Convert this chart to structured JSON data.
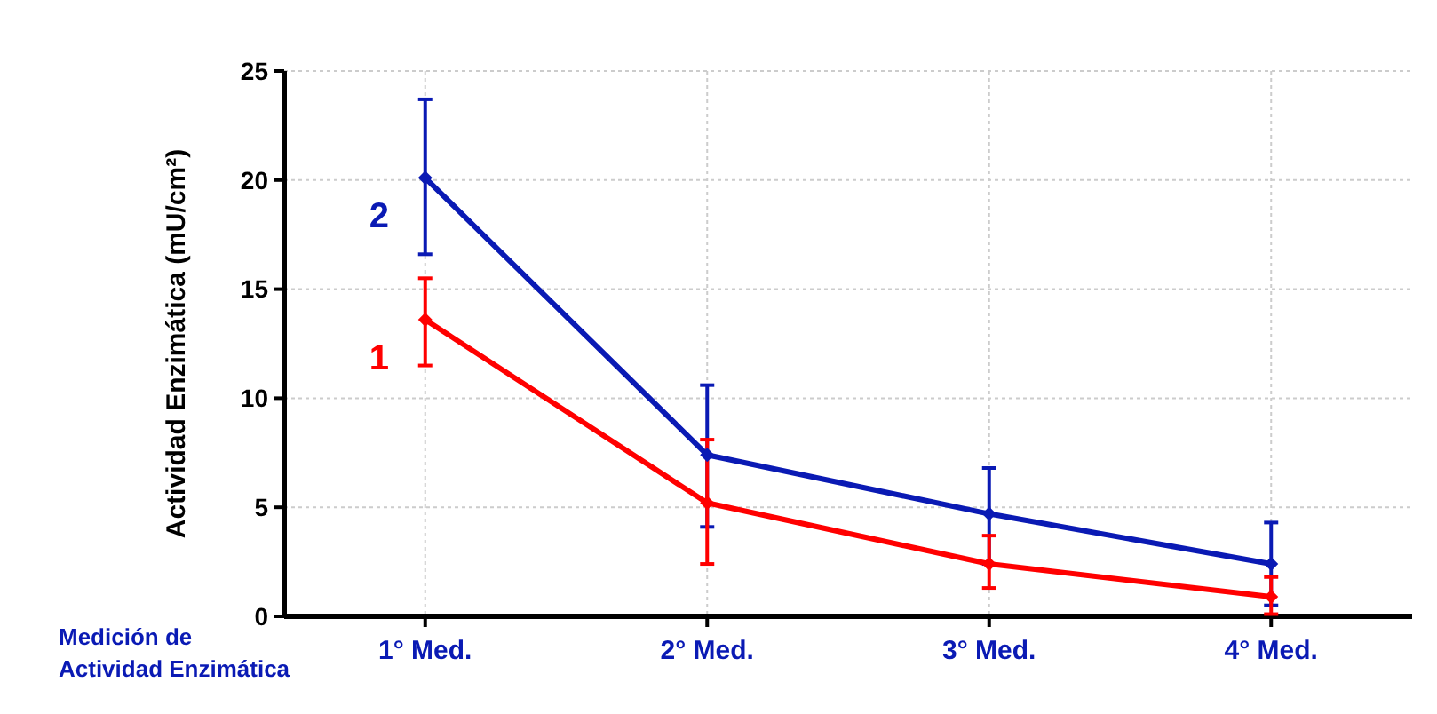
{
  "chart_data": {
    "type": "line",
    "xlabel": "Medición de\nActividad Enzimática",
    "ylabel": "Actividad Enzimática (mU/cm²)",
    "categories": [
      "1° Med.",
      "2° Med.",
      "3° Med.",
      "4° Med."
    ],
    "series": [
      {
        "name": "2",
        "color": "#0a1ab4",
        "values": [
          20.1,
          7.4,
          4.7,
          2.4
        ],
        "errors": [
          [
            16.6,
            23.7
          ],
          [
            4.1,
            10.6
          ],
          [
            2.4,
            6.8
          ],
          [
            0.5,
            4.3
          ]
        ]
      },
      {
        "name": "1",
        "color": "#ff0000",
        "values": [
          13.6,
          5.2,
          2.4,
          0.9
        ],
        "errors": [
          [
            11.5,
            15.5
          ],
          [
            2.4,
            8.1
          ],
          [
            1.3,
            3.7
          ],
          [
            0.1,
            1.8
          ]
        ]
      }
    ],
    "ylim": [
      0,
      25
    ],
    "yticks": [
      0,
      5,
      10,
      15,
      20,
      25
    ],
    "grid": true,
    "marker": "diamond",
    "line_style": "solid"
  }
}
